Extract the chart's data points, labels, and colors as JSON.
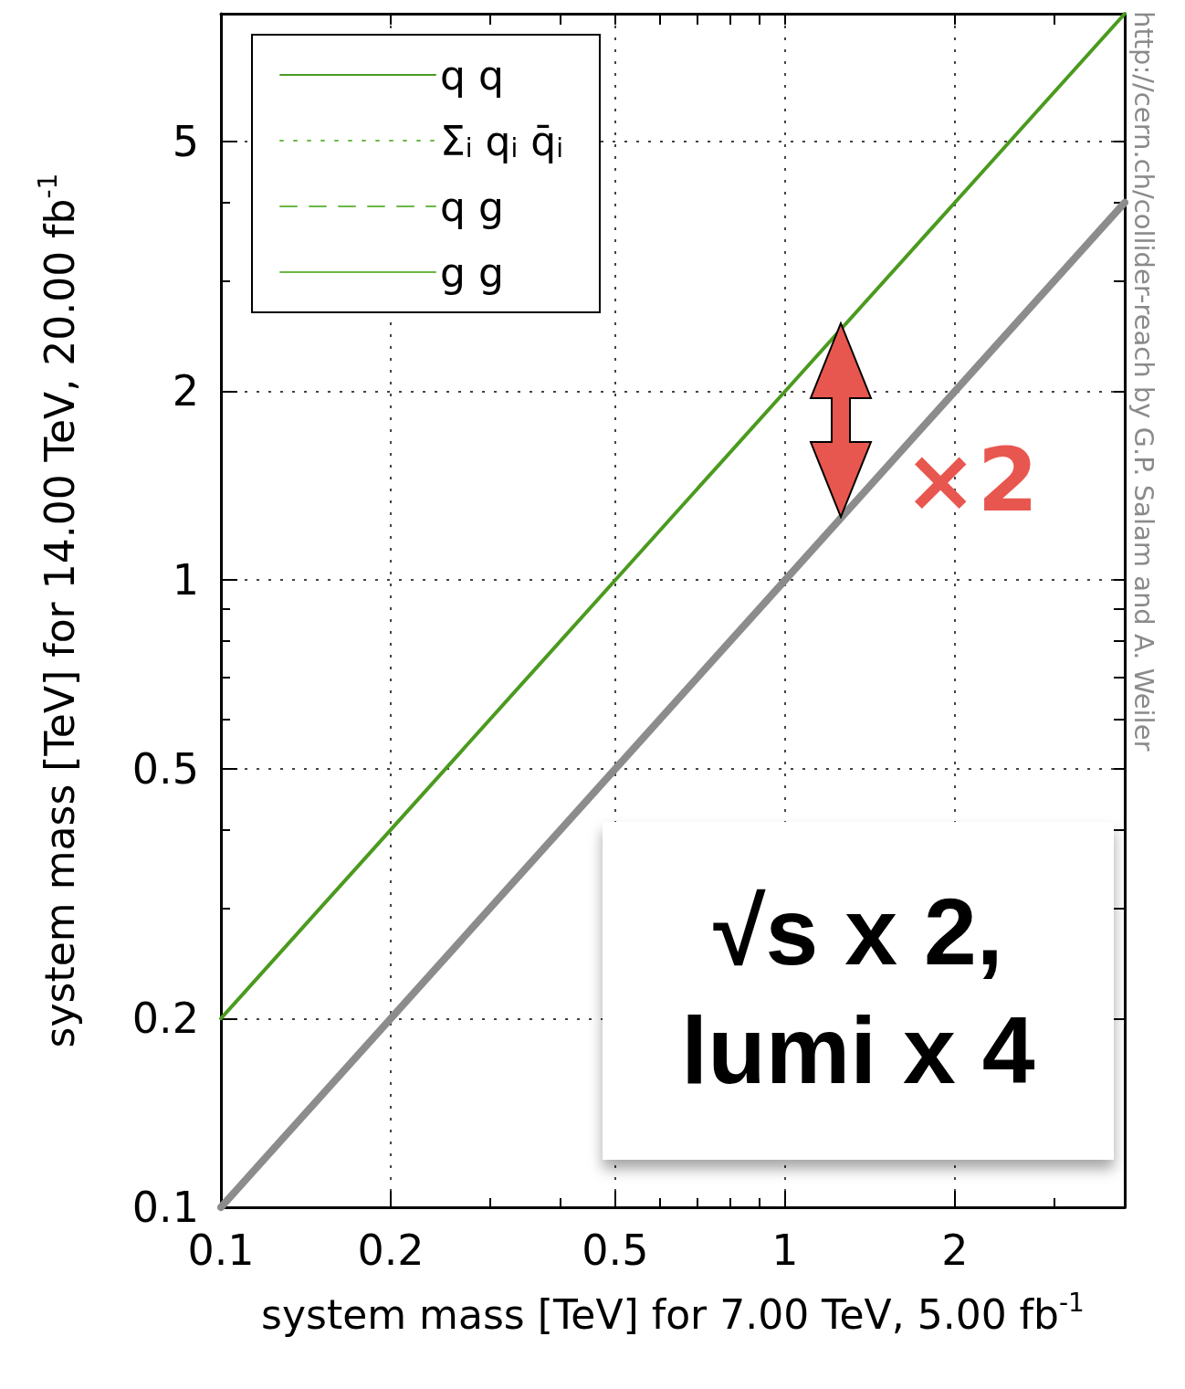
{
  "chart_data": {
    "type": "line",
    "xlabel": "system mass [TeV] for 7.00 TeV, 5.00 fb$^{-1}$",
    "ylabel": "system mass [TeV] for 14.00 TeV, 20.00 fb$^{-1}$",
    "log": "xy",
    "xlim": [
      0.1,
      4
    ],
    "ylim": [
      0.1,
      8
    ],
    "xticks": [
      0.1,
      0.2,
      {
        "value": 0.3,
        "label": null
      },
      {
        "value": 0.4,
        "label": null
      },
      0.5,
      {
        "value": 0.6,
        "label": null
      },
      {
        "value": 0.7,
        "label": null
      },
      {
        "value": 0.8,
        "label": null
      },
      {
        "value": 0.9,
        "label": null
      },
      1,
      2,
      {
        "value": 3,
        "label": null
      }
    ],
    "yticks": [
      0.1,
      0.2,
      {
        "value": 0.3,
        "label": null
      },
      {
        "value": 0.4,
        "label": null
      },
      0.5,
      {
        "value": 0.6,
        "label": null
      },
      {
        "value": 0.7,
        "label": null
      },
      {
        "value": 0.8,
        "label": null
      },
      {
        "value": 0.9,
        "label": null
      },
      1,
      2,
      {
        "value": 3,
        "label": null
      },
      {
        "value": 4,
        "label": null
      },
      5
    ],
    "grid": true,
    "legend": "top left",
    "marker": "none",
    "x": [
      0.1,
      0.5,
      1,
      2,
      4
    ],
    "series": [
      {
        "name": "q q",
        "color": "#4b9a1f",
        "line_style": "solid",
        "values": [
          0.2,
          1,
          2,
          4,
          8
        ]
      },
      {
        "name": "Σ$_{i}$ q$_{i}$ q̄$_{i}$",
        "color": "#6cb843",
        "line_style": "dotted",
        "values": [
          null,
          null,
          null,
          null,
          null
        ]
      },
      {
        "name": "q g",
        "color": "#6cb843",
        "line_style": "dashed",
        "values": [
          null,
          null,
          null,
          null,
          null
        ]
      },
      {
        "name": "g g",
        "color": "#6cb843",
        "line_style": "solid",
        "values": [
          null,
          null,
          null,
          null,
          null
        ]
      },
      {
        "color": "#8c8c8c",
        "line_style": "solid",
        "values": [
          0.1,
          0.5,
          1,
          2,
          4
        ]
      }
    ],
    "annotations": [
      "×2",
      "√s x 2, lumi x 4",
      "http://cern.ch/collider-reach by G.P. Salam and A. Weiler"
    ]
  }
}
